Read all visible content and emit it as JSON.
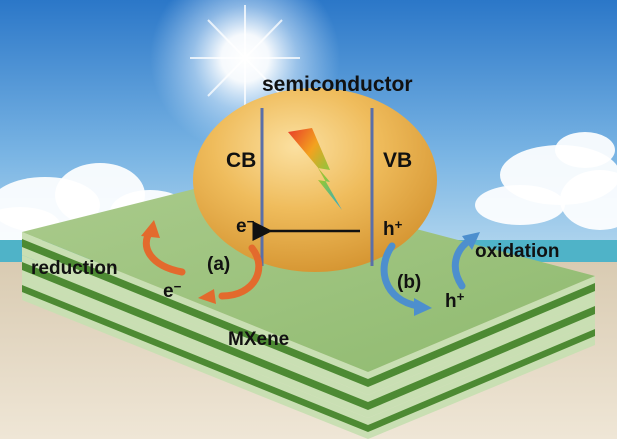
{
  "labels": {
    "semiconductor": "semiconductor",
    "cb": "CB",
    "vb": "VB",
    "electron_top": "e",
    "electron_bottom": "e",
    "electron_sign": "−",
    "hole_right": "h",
    "hole_bottom": "h",
    "hole_sign": "+",
    "step_a": "(a)",
    "step_b": "(b)",
    "reduction": "reduction",
    "oxidation": "oxidation",
    "mxene": "MXene"
  },
  "colors": {
    "sky_top": "#2b77c8",
    "sky_bottom": "#8ac0e8",
    "sea": "#4fb3c8",
    "sand": "#e3d6c0",
    "slab_top": "#9dc27e",
    "slab_stripe_dark": "#4d8a33",
    "slab_stripe_light": "#c9dfb3",
    "ellipse_fill": "#eab04a",
    "band_line": "#5a6fa8",
    "electron_arrow": "#e36a2d",
    "hole_arrow": "#4d8fce"
  },
  "icons": {
    "sun": "sun-glow-icon",
    "bolt": "lightning-bolt-icon"
  }
}
